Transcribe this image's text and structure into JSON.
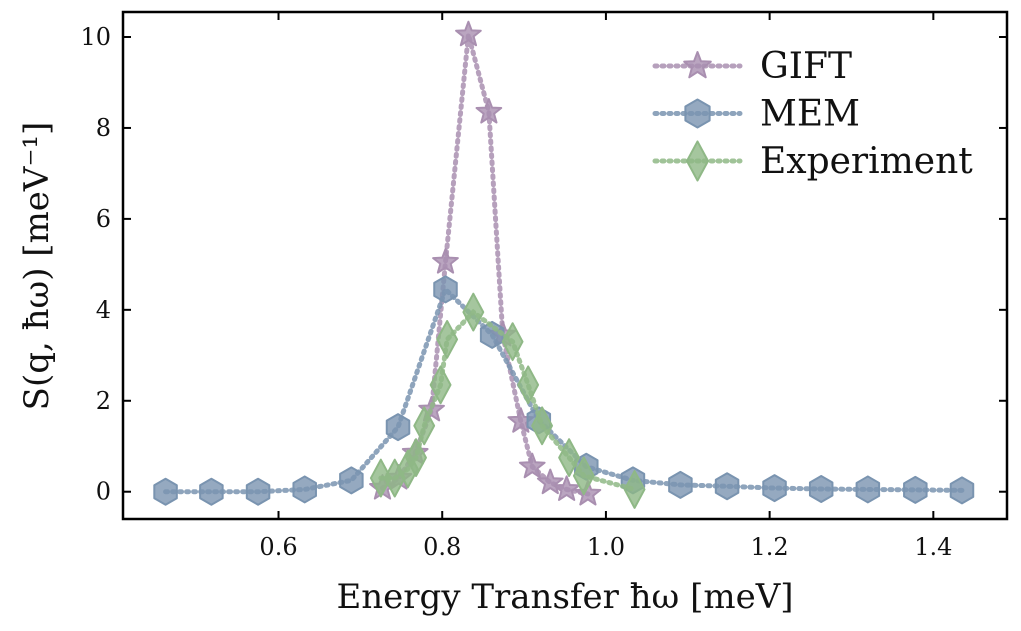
{
  "chart_data": {
    "type": "line",
    "title": "",
    "xlabel": "Energy Transfer ħω [meV]",
    "ylabel": "S(q, ħω) [meV⁻¹]",
    "xlim": [
      0.41,
      1.49
    ],
    "ylim": [
      -0.6,
      10.55
    ],
    "xticks": [
      {
        "value": 0.6,
        "label": "0.6"
      },
      {
        "value": 0.8,
        "label": "0.8"
      },
      {
        "value": 1.0,
        "label": "1.0"
      },
      {
        "value": 1.2,
        "label": "1.2"
      },
      {
        "value": 1.4,
        "label": "1.4"
      }
    ],
    "yticks": [
      {
        "value": 0,
        "label": "0"
      },
      {
        "value": 2,
        "label": "2"
      },
      {
        "value": 4,
        "label": "4"
      },
      {
        "value": 6,
        "label": "6"
      },
      {
        "value": 8,
        "label": "8"
      },
      {
        "value": 10,
        "label": "10"
      }
    ],
    "grid": false,
    "legend_position": "top-right",
    "series": [
      {
        "name": "GIFT",
        "color": "#a98fb0",
        "marker": "star",
        "x": [
          0.727,
          0.747,
          0.767,
          0.787,
          0.804,
          0.832,
          0.857,
          0.874,
          0.896,
          0.91,
          0.932,
          0.952,
          0.978
        ],
        "y": [
          0.08,
          0.3,
          0.85,
          1.8,
          5.05,
          10.05,
          8.35,
          3.45,
          1.55,
          0.55,
          0.2,
          0.05,
          -0.05
        ]
      },
      {
        "name": "MEM",
        "color": "#7a94b0",
        "marker": "hexagon",
        "x": [
          0.462,
          0.518,
          0.575,
          0.632,
          0.689,
          0.746,
          0.804,
          0.861,
          0.918,
          0.976,
          1.033,
          1.091,
          1.148,
          1.206,
          1.263,
          1.32,
          1.378,
          1.435
        ],
        "y": [
          0.0,
          0.0,
          0.0,
          0.05,
          0.25,
          1.42,
          4.45,
          3.45,
          1.57,
          0.55,
          0.25,
          0.15,
          0.12,
          0.08,
          0.06,
          0.05,
          0.04,
          0.03
        ]
      },
      {
        "name": "Experiment",
        "color": "#8fb886",
        "marker": "diamond",
        "x": [
          0.725,
          0.742,
          0.758,
          0.768,
          0.778,
          0.798,
          0.806,
          0.838,
          0.886,
          0.905,
          0.922,
          0.955,
          0.973,
          1.035
        ],
        "y": [
          0.3,
          0.3,
          0.5,
          0.75,
          1.45,
          2.35,
          3.35,
          3.95,
          3.3,
          2.35,
          1.45,
          0.75,
          0.35,
          0.05
        ]
      }
    ]
  }
}
